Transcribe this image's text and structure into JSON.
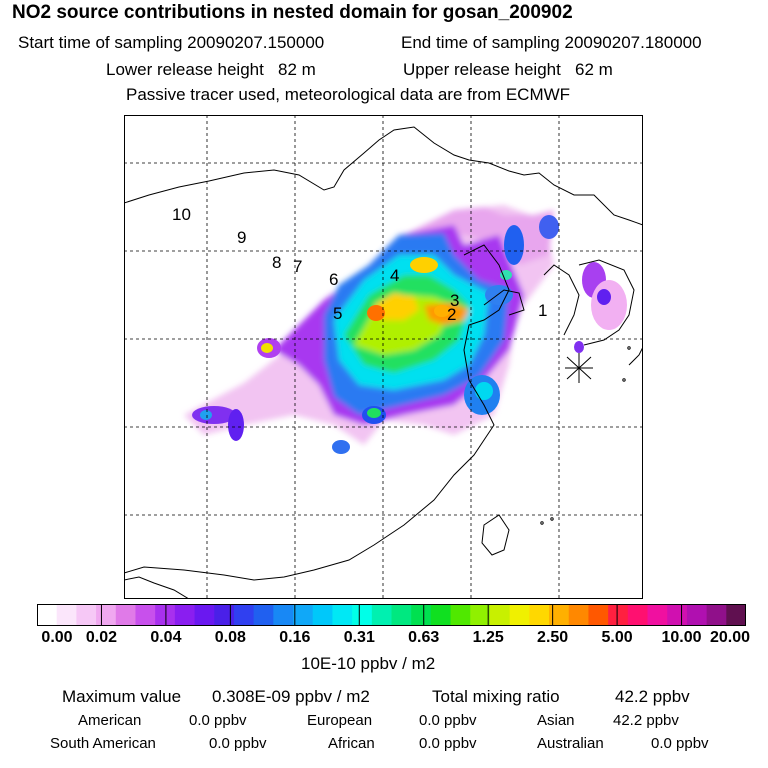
{
  "title": "NO2 source contributions in nested domain for gosan_200902",
  "header": {
    "start_label": "Start time of sampling",
    "start_value": "20090207.150000",
    "end_label": "End time of sampling",
    "end_value": "20090207.180000",
    "lower_label": "Lower release height",
    "lower_value": "82 m",
    "upper_label": "Upper release height",
    "upper_value": "62 m",
    "note": "Passive tracer used, meteorological data are from ECMWF"
  },
  "map": {
    "trajectory_labels": [
      "10",
      "9",
      "8",
      "7",
      "6",
      "4",
      "5",
      "3",
      "2",
      "1"
    ],
    "receptor_marker": "asterisk-icon"
  },
  "colorbar": {
    "ticks": [
      "0.00",
      "0.02",
      "0.04",
      "0.08",
      "0.16",
      "0.31",
      "0.63",
      "1.25",
      "2.50",
      "5.00",
      "10.00",
      "20.00"
    ],
    "unit": "10E-10 ppbv / m2",
    "colors": [
      "#ffffff",
      "#fbe6fb",
      "#f6c8f6",
      "#f0a8f0",
      "#e07ae8",
      "#c850ec",
      "#a830ee",
      "#8a1ef0",
      "#6a18f0",
      "#4a20e8",
      "#3040f0",
      "#2060f0",
      "#1888f5",
      "#10a8f8",
      "#00c8fa",
      "#00e8f5",
      "#00ffe8",
      "#00f0b0",
      "#00e880",
      "#00e050",
      "#10e020",
      "#50e800",
      "#90f000",
      "#c8f000",
      "#f0f000",
      "#ffd800",
      "#ffb000",
      "#ff8800",
      "#ff5800",
      "#ff2040",
      "#ff1070",
      "#f010a0",
      "#d010b0",
      "#b010b0",
      "#90108a",
      "#601050"
    ]
  },
  "stats": {
    "max_label": "Maximum value",
    "max_value": "0.308E-09 ppbv / m2",
    "total_label": "Total mixing ratio",
    "total_value": "42.2 ppbv",
    "american_label": "American",
    "american_value": "0.0 ppbv",
    "european_label": "European",
    "european_value": "0.0 ppbv",
    "asian_label": "Asian",
    "asian_value": "42.2 ppbv",
    "south_american_label": "South American",
    "south_american_value": "0.0 ppbv",
    "african_label": "African",
    "african_value": "0.0 ppbv",
    "australian_label": "Australian",
    "australian_value": "0.0 ppbv"
  }
}
